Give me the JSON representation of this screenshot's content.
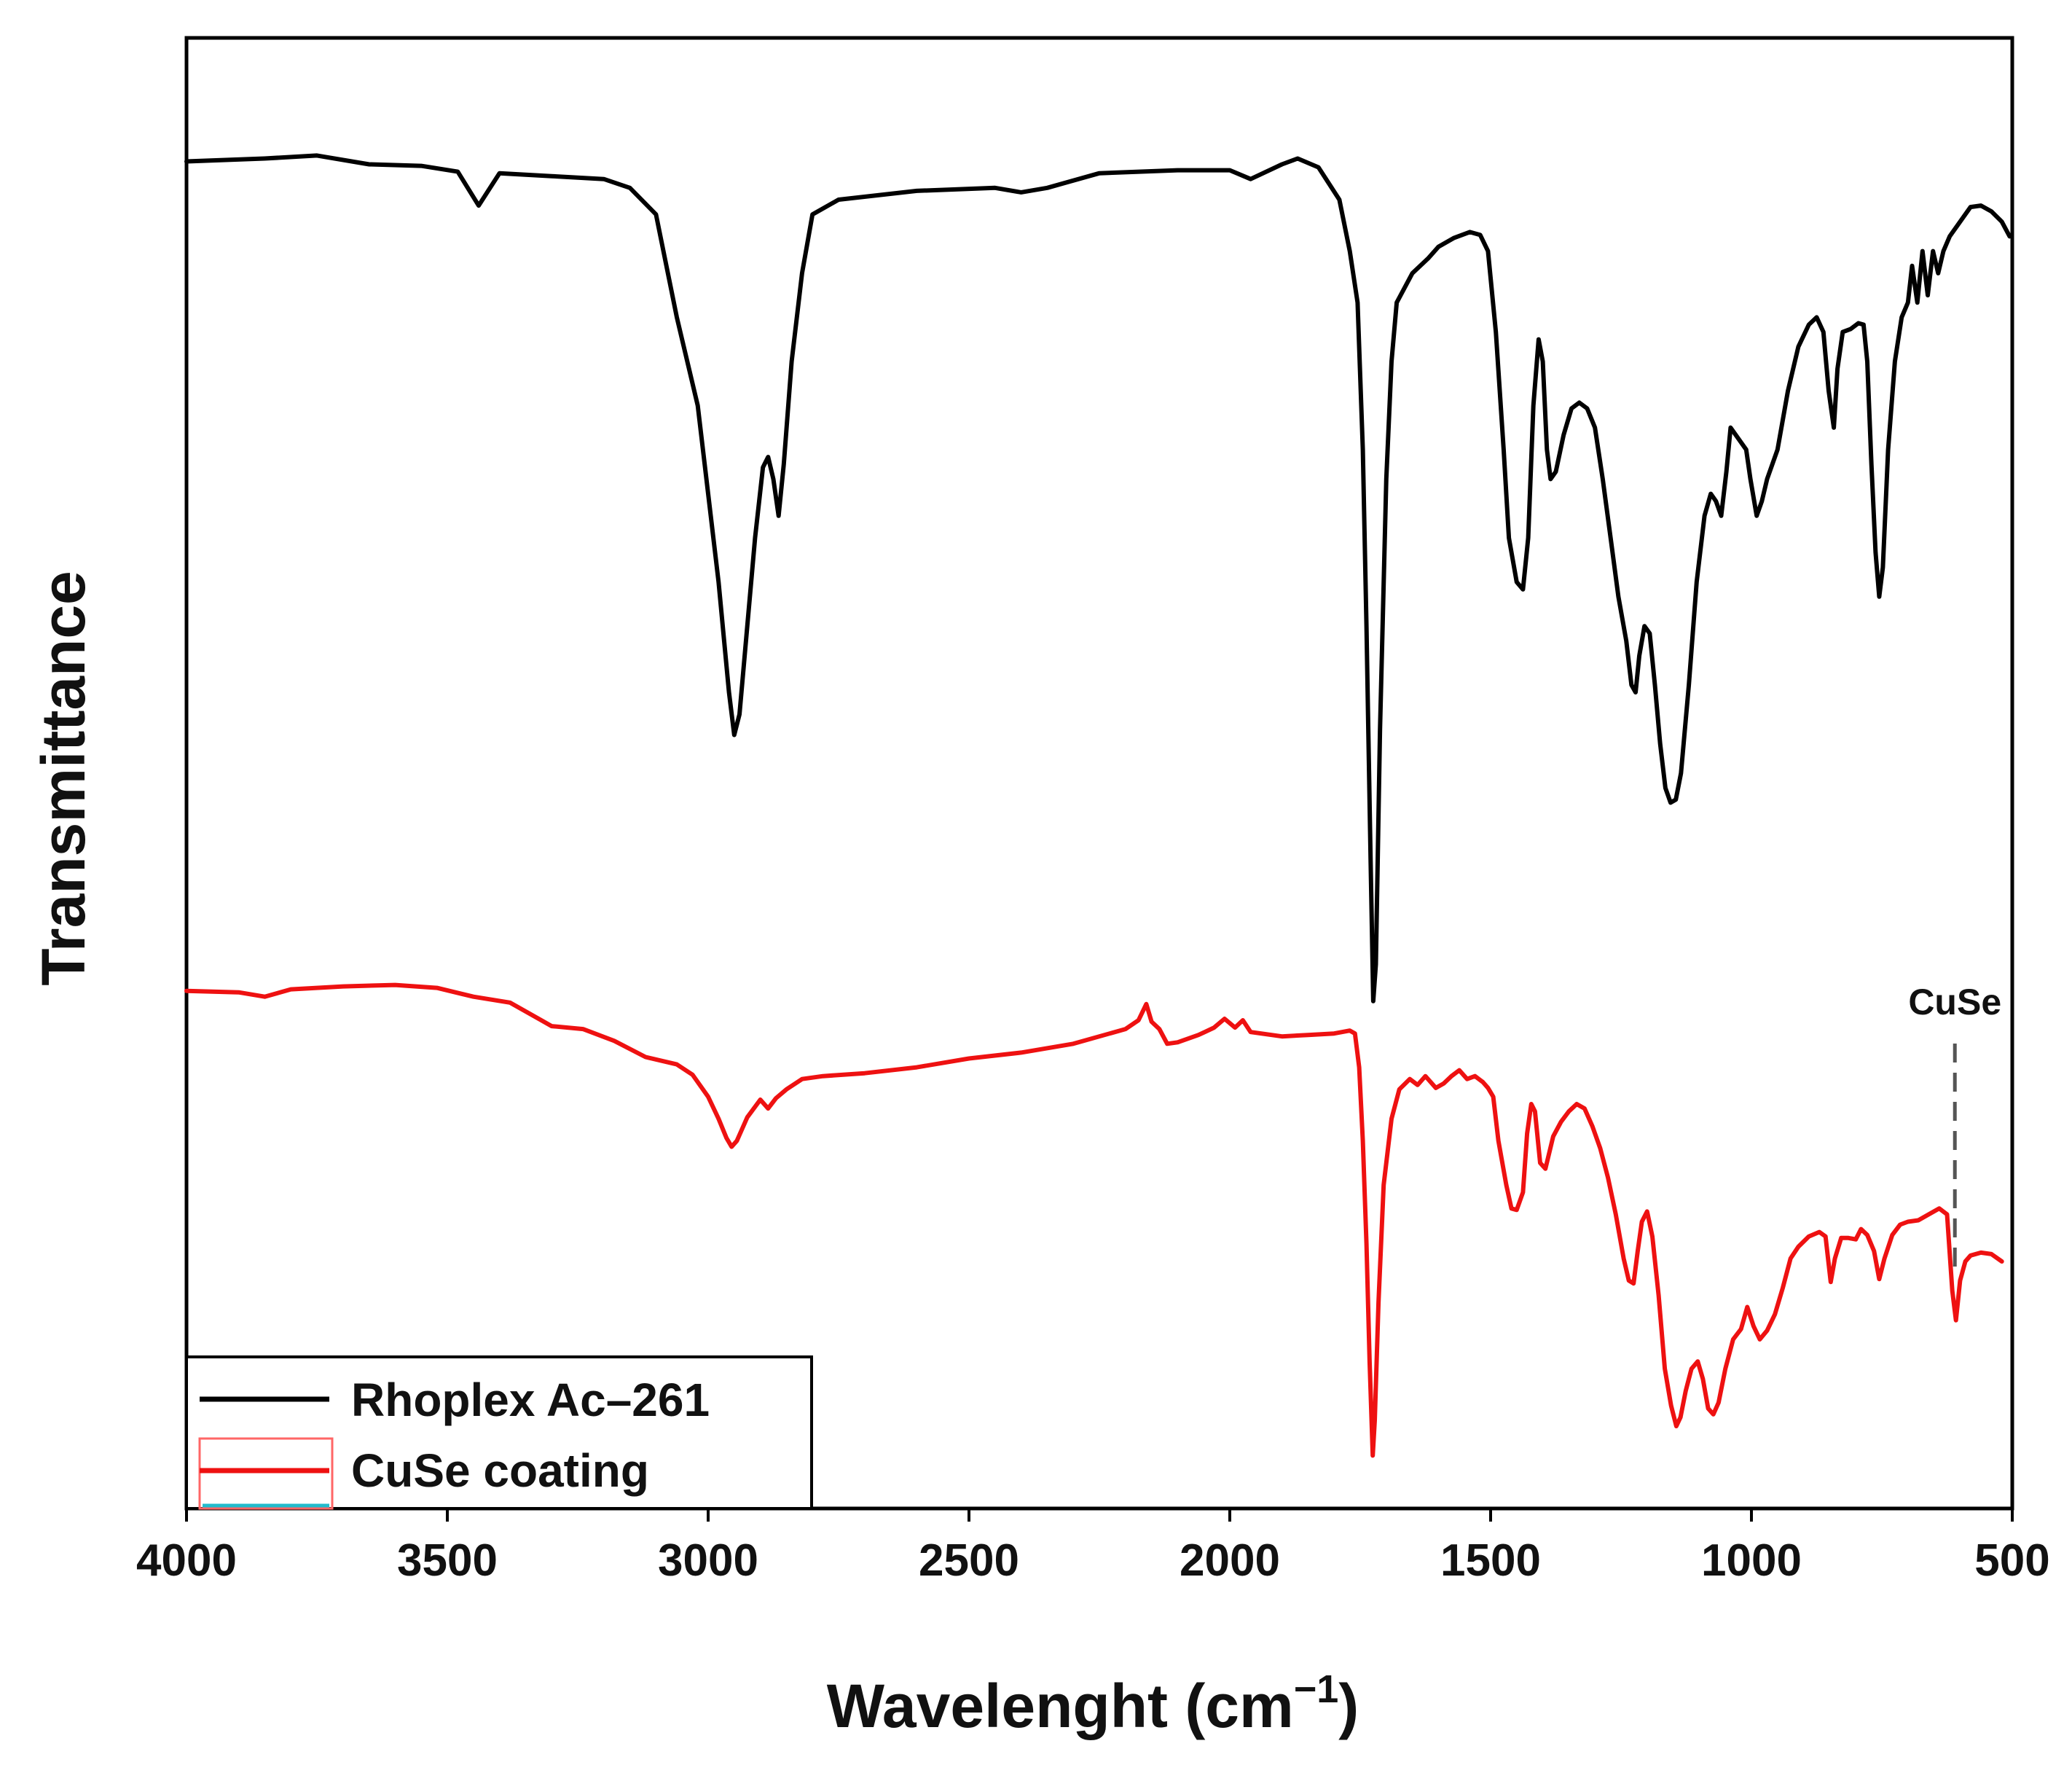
{
  "chart_data": {
    "type": "line",
    "title": "",
    "xlabel": "Wavelenght (cm",
    "xlabel_sup": "−1",
    "xlabel_close": ")",
    "ylabel": "Transmittance",
    "xlim": [
      4000,
      500
    ],
    "ylim": [
      0,
      100
    ],
    "xticks": [
      4000,
      3500,
      3000,
      2500,
      2000,
      1500,
      1000,
      500
    ],
    "x_reversed": true,
    "grid": false,
    "legend_position": "bottom-left",
    "series": [
      {
        "name": "Rhoplex Ac–261",
        "color": "#000000",
        "points": [
          [
            4000,
            91.6
          ],
          [
            3850,
            91.8
          ],
          [
            3750,
            92.0
          ],
          [
            3650,
            91.4
          ],
          [
            3550,
            91.3
          ],
          [
            3480,
            90.9
          ],
          [
            3440,
            88.6
          ],
          [
            3400,
            90.8
          ],
          [
            3300,
            90.6
          ],
          [
            3200,
            90.4
          ],
          [
            3150,
            89.8
          ],
          [
            3100,
            88.0
          ],
          [
            3060,
            81.0
          ],
          [
            3020,
            75.0
          ],
          [
            3000,
            69.0
          ],
          [
            2980,
            63.0
          ],
          [
            2960,
            55.5
          ],
          [
            2950,
            52.6
          ],
          [
            2940,
            54.0
          ],
          [
            2925,
            60.0
          ],
          [
            2910,
            66.0
          ],
          [
            2895,
            70.8
          ],
          [
            2885,
            71.5
          ],
          [
            2875,
            70.0
          ],
          [
            2865,
            67.5
          ],
          [
            2855,
            71.0
          ],
          [
            2840,
            78.0
          ],
          [
            2820,
            84.0
          ],
          [
            2800,
            88.0
          ],
          [
            2750,
            89.0
          ],
          [
            2600,
            89.6
          ],
          [
            2450,
            89.8
          ],
          [
            2400,
            89.5
          ],
          [
            2350,
            89.8
          ],
          [
            2250,
            90.8
          ],
          [
            2100,
            91.0
          ],
          [
            2000,
            91.0
          ],
          [
            1960,
            90.4
          ],
          [
            1900,
            91.4
          ],
          [
            1870,
            91.8
          ],
          [
            1830,
            91.2
          ],
          [
            1790,
            89.0
          ],
          [
            1770,
            85.5
          ],
          [
            1755,
            82.0
          ],
          [
            1745,
            72.0
          ],
          [
            1738,
            60.0
          ],
          [
            1730,
            44.0
          ],
          [
            1725,
            34.5
          ],
          [
            1720,
            37.0
          ],
          [
            1712,
            53.0
          ],
          [
            1700,
            70.0
          ],
          [
            1690,
            78.0
          ],
          [
            1680,
            82.0
          ],
          [
            1650,
            84.0
          ],
          [
            1620,
            85.0
          ],
          [
            1600,
            85.8
          ],
          [
            1570,
            86.4
          ],
          [
            1540,
            86.8
          ],
          [
            1520,
            86.6
          ],
          [
            1505,
            85.5
          ],
          [
            1490,
            80.0
          ],
          [
            1475,
            72.0
          ],
          [
            1465,
            66.0
          ],
          [
            1450,
            63.0
          ],
          [
            1438,
            62.5
          ],
          [
            1428,
            66.0
          ],
          [
            1418,
            75.0
          ],
          [
            1408,
            79.5
          ],
          [
            1400,
            78.0
          ],
          [
            1392,
            72.0
          ],
          [
            1385,
            70.0
          ],
          [
            1375,
            70.5
          ],
          [
            1360,
            73.0
          ],
          [
            1345,
            74.8
          ],
          [
            1330,
            75.2
          ],
          [
            1315,
            74.8
          ],
          [
            1300,
            73.5
          ],
          [
            1285,
            70.0
          ],
          [
            1270,
            66.0
          ],
          [
            1255,
            62.0
          ],
          [
            1240,
            59.0
          ],
          [
            1230,
            56.0
          ],
          [
            1222,
            55.5
          ],
          [
            1215,
            58.0
          ],
          [
            1205,
            60.0
          ],
          [
            1195,
            59.5
          ],
          [
            1185,
            56.0
          ],
          [
            1175,
            52.0
          ],
          [
            1165,
            49.0
          ],
          [
            1155,
            48.0
          ],
          [
            1145,
            48.2
          ],
          [
            1135,
            50.0
          ],
          [
            1120,
            56.0
          ],
          [
            1105,
            63.0
          ],
          [
            1090,
            67.5
          ],
          [
            1078,
            69.0
          ],
          [
            1068,
            68.5
          ],
          [
            1058,
            67.5
          ],
          [
            1048,
            70.5
          ],
          [
            1040,
            73.5
          ],
          [
            1030,
            73.0
          ],
          [
            1020,
            72.5
          ],
          [
            1010,
            72.0
          ],
          [
            1002,
            70.0
          ],
          [
            990,
            67.5
          ],
          [
            980,
            68.5
          ],
          [
            970,
            70.0
          ],
          [
            950,
            72.0
          ],
          [
            930,
            76.0
          ],
          [
            910,
            79.0
          ],
          [
            890,
            80.5
          ],
          [
            875,
            81.0
          ],
          [
            862,
            80.0
          ],
          [
            852,
            76.0
          ],
          [
            842,
            73.5
          ],
          [
            835,
            77.5
          ],
          [
            825,
            80.0
          ],
          [
            810,
            80.2
          ],
          [
            795,
            80.6
          ],
          [
            785,
            80.5
          ],
          [
            778,
            78.0
          ],
          [
            770,
            71.0
          ],
          [
            762,
            65.0
          ],
          [
            755,
            62.0
          ],
          [
            748,
            64.0
          ],
          [
            738,
            72.0
          ],
          [
            725,
            78.0
          ],
          [
            712,
            81.0
          ],
          [
            700,
            82.0
          ],
          [
            692,
            84.5
          ],
          [
            682,
            82.0
          ],
          [
            672,
            85.5
          ],
          [
            662,
            82.5
          ],
          [
            652,
            85.5
          ],
          [
            642,
            84.0
          ],
          [
            632,
            85.5
          ],
          [
            620,
            86.5
          ],
          [
            600,
            87.5
          ],
          [
            580,
            88.5
          ],
          [
            560,
            88.6
          ],
          [
            540,
            88.2
          ],
          [
            520,
            87.5
          ],
          [
            505,
            86.5
          ]
        ]
      },
      {
        "name": "CuSe coating",
        "color": "#ee1111",
        "points": [
          [
            4000,
            35.2
          ],
          [
            3900,
            35.1
          ],
          [
            3850,
            34.8
          ],
          [
            3800,
            35.3
          ],
          [
            3700,
            35.5
          ],
          [
            3600,
            35.6
          ],
          [
            3520,
            35.4
          ],
          [
            3450,
            34.8
          ],
          [
            3380,
            34.4
          ],
          [
            3350,
            33.8
          ],
          [
            3320,
            33.2
          ],
          [
            3300,
            32.8
          ],
          [
            3240,
            32.6
          ],
          [
            3180,
            31.8
          ],
          [
            3120,
            30.7
          ],
          [
            3060,
            30.2
          ],
          [
            3030,
            29.5
          ],
          [
            3000,
            28.0
          ],
          [
            2980,
            26.5
          ],
          [
            2965,
            25.2
          ],
          [
            2955,
            24.6
          ],
          [
            2945,
            25.0
          ],
          [
            2925,
            26.6
          ],
          [
            2900,
            27.8
          ],
          [
            2885,
            27.2
          ],
          [
            2870,
            27.9
          ],
          [
            2850,
            28.5
          ],
          [
            2820,
            29.2
          ],
          [
            2780,
            29.4
          ],
          [
            2700,
            29.6
          ],
          [
            2600,
            30.0
          ],
          [
            2500,
            30.6
          ],
          [
            2400,
            31.0
          ],
          [
            2300,
            31.6
          ],
          [
            2200,
            32.6
          ],
          [
            2175,
            33.2
          ],
          [
            2160,
            34.3
          ],
          [
            2150,
            33.1
          ],
          [
            2135,
            32.6
          ],
          [
            2120,
            31.6
          ],
          [
            2100,
            31.7
          ],
          [
            2060,
            32.2
          ],
          [
            2030,
            32.7
          ],
          [
            2010,
            33.3
          ],
          [
            1990,
            32.7
          ],
          [
            1975,
            33.2
          ],
          [
            1960,
            32.4
          ],
          [
            1940,
            32.3
          ],
          [
            1900,
            32.1
          ],
          [
            1850,
            32.2
          ],
          [
            1800,
            32.3
          ],
          [
            1770,
            32.5
          ],
          [
            1760,
            32.3
          ],
          [
            1752,
            30.0
          ],
          [
            1745,
            25.0
          ],
          [
            1738,
            18.0
          ],
          [
            1732,
            10.0
          ],
          [
            1726,
            3.6
          ],
          [
            1722,
            6.0
          ],
          [
            1715,
            14.0
          ],
          [
            1705,
            22.0
          ],
          [
            1690,
            26.5
          ],
          [
            1675,
            28.5
          ],
          [
            1655,
            29.2
          ],
          [
            1640,
            28.8
          ],
          [
            1625,
            29.4
          ],
          [
            1605,
            28.6
          ],
          [
            1590,
            28.9
          ],
          [
            1575,
            29.4
          ],
          [
            1560,
            29.8
          ],
          [
            1545,
            29.2
          ],
          [
            1530,
            29.4
          ],
          [
            1515,
            29.0
          ],
          [
            1505,
            28.6
          ],
          [
            1495,
            28.0
          ],
          [
            1485,
            25.0
          ],
          [
            1470,
            22.0
          ],
          [
            1460,
            20.4
          ],
          [
            1450,
            20.3
          ],
          [
            1438,
            21.5
          ],
          [
            1430,
            25.5
          ],
          [
            1422,
            27.5
          ],
          [
            1415,
            27.0
          ],
          [
            1405,
            23.5
          ],
          [
            1395,
            23.1
          ],
          [
            1380,
            25.3
          ],
          [
            1365,
            26.3
          ],
          [
            1350,
            27.0
          ],
          [
            1335,
            27.5
          ],
          [
            1320,
            27.2
          ],
          [
            1305,
            26.0
          ],
          [
            1290,
            24.5
          ],
          [
            1275,
            22.5
          ],
          [
            1260,
            20.0
          ],
          [
            1245,
            17.0
          ],
          [
            1235,
            15.5
          ],
          [
            1226,
            15.3
          ],
          [
            1218,
            17.5
          ],
          [
            1210,
            19.5
          ],
          [
            1200,
            20.2
          ],
          [
            1190,
            18.5
          ],
          [
            1178,
            14.5
          ],
          [
            1166,
            9.5
          ],
          [
            1154,
            7.0
          ],
          [
            1144,
            5.6
          ],
          [
            1136,
            6.2
          ],
          [
            1126,
            8.0
          ],
          [
            1115,
            9.5
          ],
          [
            1103,
            10.0
          ],
          [
            1093,
            8.8
          ],
          [
            1083,
            6.8
          ],
          [
            1073,
            6.4
          ],
          [
            1063,
            7.2
          ],
          [
            1050,
            9.5
          ],
          [
            1035,
            11.5
          ],
          [
            1020,
            12.2
          ],
          [
            1008,
            13.7
          ],
          [
            996,
            12.4
          ],
          [
            984,
            11.5
          ],
          [
            970,
            12.1
          ],
          [
            955,
            13.2
          ],
          [
            940,
            15.0
          ],
          [
            925,
            17.0
          ],
          [
            910,
            17.8
          ],
          [
            890,
            18.5
          ],
          [
            870,
            18.8
          ],
          [
            858,
            18.5
          ],
          [
            848,
            15.4
          ],
          [
            840,
            17.0
          ],
          [
            828,
            18.4
          ],
          [
            815,
            18.4
          ],
          [
            800,
            18.3
          ],
          [
            790,
            19.0
          ],
          [
            778,
            18.6
          ],
          [
            765,
            17.5
          ],
          [
            755,
            15.6
          ],
          [
            745,
            17.0
          ],
          [
            730,
            18.6
          ],
          [
            715,
            19.3
          ],
          [
            700,
            19.5
          ],
          [
            680,
            19.6
          ],
          [
            660,
            20.0
          ],
          [
            640,
            20.4
          ],
          [
            625,
            20.0
          ],
          [
            615,
            14.8
          ],
          [
            608,
            12.8
          ],
          [
            600,
            15.5
          ],
          [
            590,
            16.8
          ],
          [
            580,
            17.2
          ],
          [
            560,
            17.4
          ],
          [
            540,
            17.3
          ],
          [
            520,
            16.8
          ]
        ]
      }
    ],
    "annotations": [
      {
        "text": "CuSe",
        "x": 610
      }
    ]
  }
}
